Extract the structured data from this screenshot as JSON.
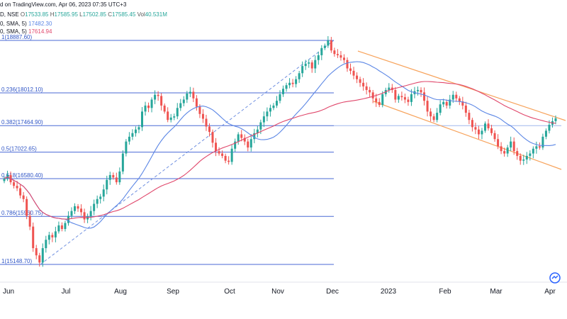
{
  "header": {
    "line1": "d on TradingView.com, Apr 06, 2023 07:35 UTC+3",
    "line2": {
      "symbol": "D, NSE",
      "o_label": "O",
      "o_value": "17533.85",
      "h_label": "H",
      "h_value": "17585.95",
      "l_label": "L",
      "l_value": "17502.85",
      "c_label": "C",
      "c_value": "17585.45",
      "vol_label": "Vol",
      "vol_value": "40.531M"
    },
    "line3": {
      "label": "0, SMA, 5)",
      "value": "17482.30"
    },
    "line4": {
      "label": "0, SMA, 5)",
      "value": "17614.94"
    }
  },
  "colors": {
    "up": "#26a69a",
    "down": "#ef5350",
    "sma_fast": "#5b86e5",
    "sma_slow": "#e0476b",
    "fib_line": "#4a6ad6",
    "fib_text": "#2f55c6",
    "channel": "#f7a35c",
    "trendline": "#6e8fe0"
  },
  "chart_data": {
    "type": "candlestick",
    "x_axis": {
      "tick_labels": [
        "Jun",
        "Jul",
        "Aug",
        "Sep",
        "Oct",
        "Nov",
        "Dec",
        "2023",
        "Feb",
        "Mar",
        "Apr"
      ]
    },
    "fib_levels": [
      {
        "label": "1(18887.60)",
        "value": 18887.6
      },
      {
        "label": "0.236(18012.10)",
        "value": 18012.1
      },
      {
        "label": "0.382(17464.90)",
        "value": 17464.9
      },
      {
        "label": "0.5(17022.65)",
        "value": 17022.65
      },
      {
        "label": "0.618(16580.40)",
        "value": 16580.4
      },
      {
        "label": "0.786(15950.75)",
        "value": 15950.75
      },
      {
        "label": "1(15148.70)",
        "value": 15148.7
      }
    ],
    "series": [
      {
        "name": "SMA 5 (fast)",
        "last_value": 17482.3
      },
      {
        "name": "SMA 5 (slow)",
        "last_value": 17614.94
      }
    ],
    "candles": {
      "interval": "1D",
      "approximate_closes": [
        16580,
        16640,
        16520,
        16460,
        16420,
        16300,
        16240,
        15960,
        15780,
        15420,
        15300,
        15180,
        15420,
        15560,
        15640,
        15600,
        15700,
        15800,
        15740,
        15840,
        15960,
        16040,
        16120,
        16080,
        16020,
        15900,
        15950,
        16040,
        16160,
        16240,
        16280,
        16400,
        16560,
        16640,
        16600,
        16520,
        16700,
        17000,
        17200,
        17280,
        17340,
        17400,
        17440,
        17700,
        17800,
        17760,
        17900,
        17980,
        17960,
        17800,
        17700,
        17560,
        17600,
        17620,
        17760,
        17840,
        17900,
        18000,
        18030,
        17920,
        17780,
        17660,
        17580,
        17450,
        17360,
        17180,
        17040,
        17000,
        16960,
        16880,
        16860,
        17080,
        17200,
        17320,
        17260,
        17200,
        17100,
        17240,
        17340,
        17400,
        17520,
        17620,
        17700,
        17760,
        17800,
        17880,
        17990,
        18080,
        18140,
        18180,
        18160,
        18240,
        18340,
        18460,
        18500,
        18520,
        18420,
        18560,
        18640,
        18760,
        18800,
        18887,
        18720,
        18660,
        18640,
        18600,
        18560,
        18420,
        18380,
        18300,
        18240,
        18180,
        18120,
        18060,
        18020,
        17920,
        17860,
        17810,
        17990,
        18060,
        18100,
        18060,
        17900,
        17960,
        17940,
        17900,
        17860,
        17990,
        18040,
        18060,
        18020,
        17880,
        17700,
        17620,
        17560,
        17680,
        17820,
        17860,
        17800,
        17900,
        17980,
        17920,
        17870,
        17800,
        17680,
        17560,
        17440,
        17400,
        17320,
        17380,
        17500,
        17420,
        17340,
        17240,
        17120,
        17040,
        17000,
        17100,
        17200,
        17040,
        16960,
        16880,
        16900,
        16960,
        17000,
        17080,
        17120,
        17100,
        17280,
        17380,
        17480,
        17540,
        17586
      ]
    },
    "trendlines": [
      {
        "name": "rising trendline",
        "style": "dashed",
        "from": {
          "x": "Jun",
          "y": 15148.7
        },
        "to": {
          "x": "Dec",
          "y": 18887.6
        }
      },
      {
        "name": "descending channel",
        "style": "solid",
        "lines": 2
      }
    ]
  }
}
